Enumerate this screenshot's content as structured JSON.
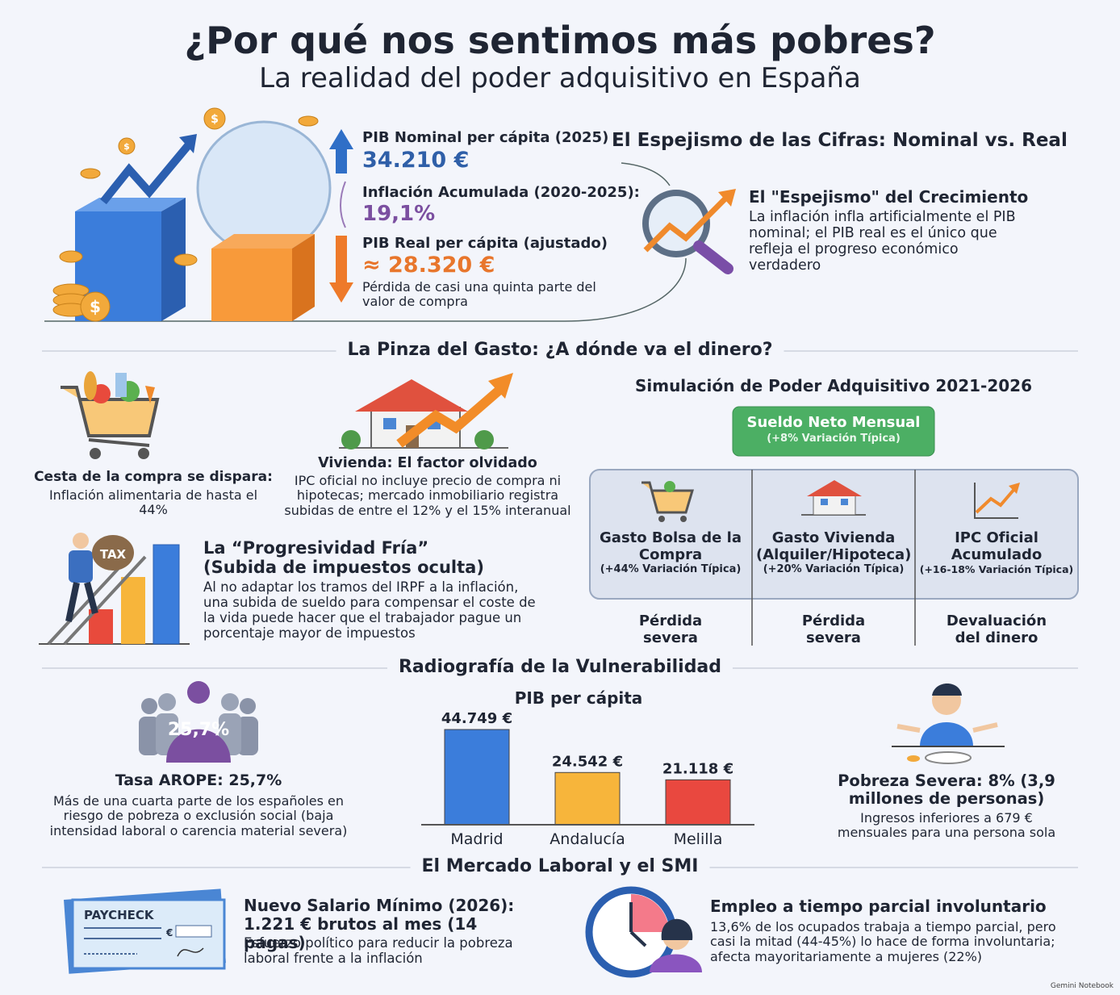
{
  "header": {
    "title": "¿Por qué nos sentimos más pobres?",
    "subtitle": "La realidad del poder adquisitivo en España"
  },
  "nominal_real": {
    "stats": [
      {
        "label": "PIB Nominal per cápita (2025)",
        "value": "34.210 €"
      },
      {
        "label": "Inflación Acumulada (2020-2025):",
        "value": "19,1%"
      },
      {
        "label": "PIB Real per cápita (ajustado)",
        "value": "≈ 28.320 €",
        "note": "Pérdida de casi una quinta parte del valor de compra"
      }
    ],
    "heading": "El Espejismo de las Cifras: Nominal vs. Real",
    "mirage_title": "El \"Espejismo\" del Crecimiento",
    "mirage_text": "La inflación infla artificialmente el PIB nominal; el PIB real es el único que refleja el progreso económico verdadero"
  },
  "spending": {
    "heading": "La Pinza del Gasto: ¿A dónde va el dinero?",
    "basket": {
      "title": "Cesta de la compra se dispara:",
      "text": "Inflación alimentaria de hasta el 44%"
    },
    "housing": {
      "title": "Vivienda: El factor olvidado",
      "text": "IPC oficial no incluye precio de compra ni hipotecas; mercado inmobiliario registra subidas de entre el 12% y el 15% interanual"
    },
    "progressivity": {
      "title": "La “Progresividad Fría”",
      "subtitle": "(Subida de impuestos oculta)",
      "text": "Al no adaptar los tramos del IRPF a la inflación, una subida de sueldo para compensar el coste de la vida puede hacer que el trabajador pague un porcentaje mayor de impuestos"
    },
    "simulation": {
      "title": "Simulación de Poder Adquisitivo 2021-2026",
      "salary": {
        "label": "Sueldo Neto Mensual",
        "note": "(+8% Variación Típica)"
      },
      "columns": [
        {
          "label": "Gasto Bolsa de la Compra",
          "note": "(+44% Variación Típica)",
          "result": "Pérdida severa"
        },
        {
          "label": "Gasto Vivienda (Alquiler/Hipoteca)",
          "note": "(+20% Variación Típica)",
          "result": "Pérdida severa"
        },
        {
          "label": "IPC Oficial Acumulado",
          "note": "(+16-18% Variación Típica)",
          "result": "Devaluación del dinero"
        }
      ]
    }
  },
  "vulnerability": {
    "heading": "Radiografía de la Vulnerabilidad",
    "arope": {
      "badge": "25,7%",
      "title": "Tasa AROPE: 25,7%",
      "text": "Más de una cuarta parte de los españoles en riesgo de pobreza o exclusión social (baja intensidad laboral o carencia material severa)"
    },
    "poverty": {
      "title": "Pobreza Severa: 8% (3,9 millones de personas)",
      "text": "Ingresos inferiores a 679 € mensuales para una persona sola"
    }
  },
  "chart_data": {
    "type": "bar",
    "title": "PIB per cápita",
    "categories": [
      "Madrid",
      "Andalucía",
      "Melilla"
    ],
    "values": [
      44749,
      24542,
      21118
    ],
    "value_labels": [
      "44.749 €",
      "24.542 €",
      "21.118 €"
    ],
    "colors": [
      "#3b7ddb",
      "#f7b53b",
      "#e9483f"
    ]
  },
  "labor": {
    "heading": "El Mercado Laboral y el SMI",
    "smi": {
      "title": "Nuevo Salario Mínimo (2026): 1.221 € brutos al mes (14 pagas)",
      "text": "Esfuerzo político para reducir la pobreza laboral frente a la inflación"
    },
    "parttime": {
      "title": "Empleo a tiempo parcial involuntario",
      "text": "13,6% de los ocupados trabaja a tiempo parcial, pero casi la mitad (44-45%) lo hace de forma involuntaria; afecta mayoritariamente a mujeres (22%)"
    }
  },
  "icon_texts": {
    "coin": "$",
    "tax": "TAX",
    "paycheck": "PAYCHECK",
    "currency": "€"
  },
  "footer": "Gemini Notebook"
}
